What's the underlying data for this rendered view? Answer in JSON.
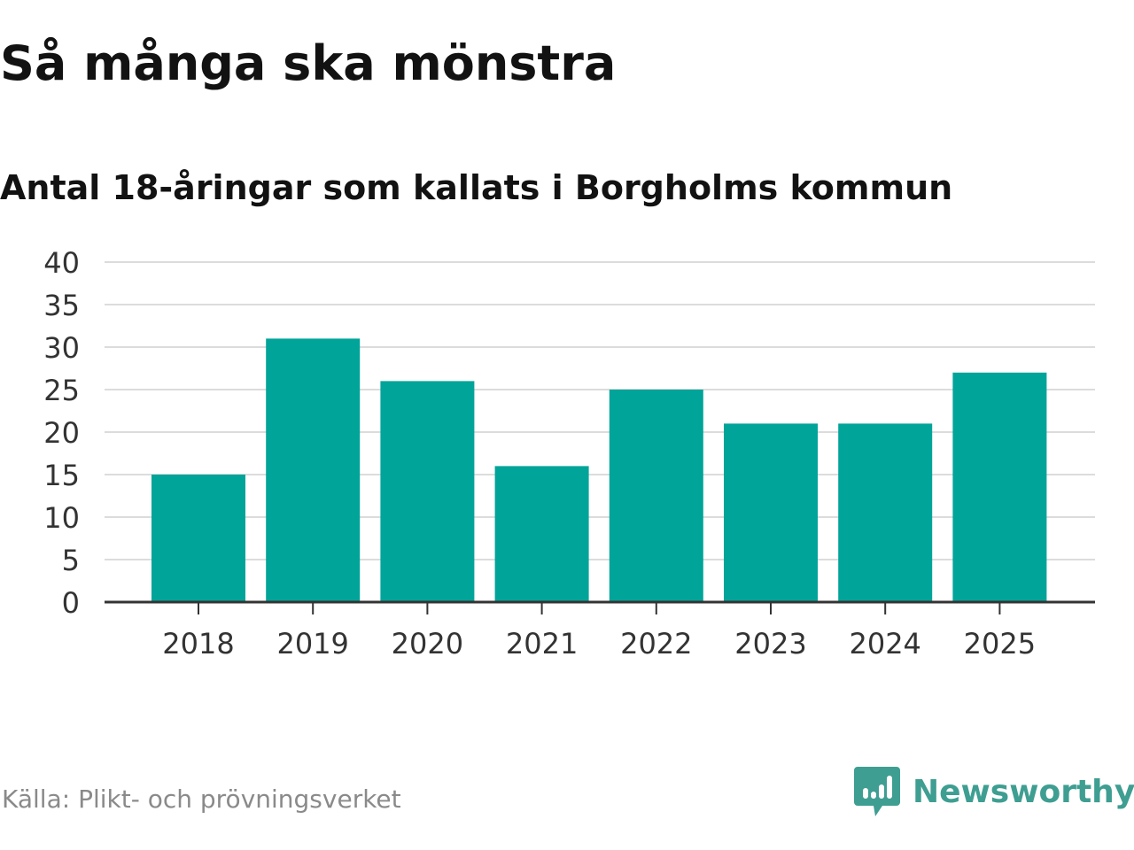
{
  "title": "Så många ska mönstra",
  "subtitle": "Antal 18-åringar som kallats i Borgholms kommun",
  "source": "Källa: Plikt- och prövningsverket",
  "brand": {
    "name": "Newsworthy",
    "logo_icon": "chat-bubble-bar-chart-icon",
    "color": "#3e9e91"
  },
  "colors": {
    "bar": "#00a499",
    "grid": "#dcdcdc",
    "axis": "#333333",
    "text": "#121212",
    "source": "#8a8a8a"
  },
  "chart_data": {
    "type": "bar",
    "categories": [
      "2018",
      "2019",
      "2020",
      "2021",
      "2022",
      "2023",
      "2024",
      "2025"
    ],
    "values": [
      15,
      31,
      26,
      16,
      25,
      21,
      21,
      27
    ],
    "ylim": [
      0,
      40
    ],
    "yticks": [
      0,
      5,
      10,
      15,
      20,
      25,
      30,
      35,
      40
    ],
    "xlabel": "",
    "ylabel": "",
    "grid": true,
    "legend": false
  }
}
